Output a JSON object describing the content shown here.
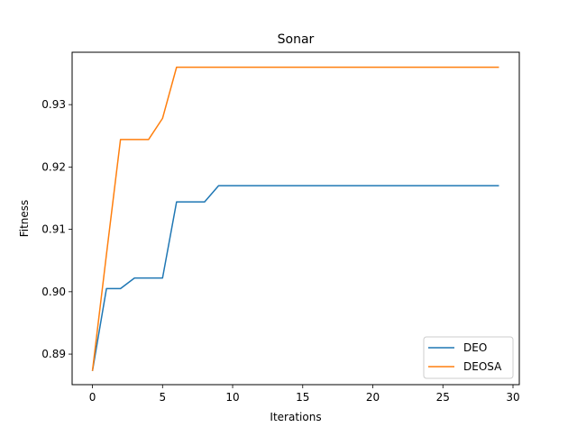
{
  "chart_data": {
    "type": "line",
    "title": "Sonar",
    "xlabel": "Iterations",
    "ylabel": "Fitness",
    "xlim": [
      -1.45,
      30.45
    ],
    "ylim": [
      0.8851,
      0.9384
    ],
    "x_ticks": [
      0,
      5,
      10,
      15,
      20,
      25,
      30
    ],
    "y_ticks": [
      0.89,
      0.9,
      0.91,
      0.92,
      0.93
    ],
    "x_tick_labels": [
      "0",
      "5",
      "10",
      "15",
      "20",
      "25",
      "30"
    ],
    "y_tick_labels": [
      "0.89",
      "0.90",
      "0.91",
      "0.92",
      "0.93"
    ],
    "grid": false,
    "legend_position": "lower-right",
    "x": [
      0,
      1,
      2,
      3,
      4,
      5,
      6,
      7,
      8,
      9,
      10,
      11,
      12,
      13,
      14,
      15,
      16,
      17,
      18,
      19,
      20,
      21,
      22,
      23,
      24,
      25,
      26,
      27,
      28,
      29
    ],
    "series": [
      {
        "name": "DEO",
        "color": "#1f77b4",
        "values": [
          0.8873,
          0.9005,
          0.9005,
          0.9022,
          0.9022,
          0.9022,
          0.9144,
          0.9144,
          0.9144,
          0.917,
          0.917,
          0.917,
          0.917,
          0.917,
          0.917,
          0.917,
          0.917,
          0.917,
          0.917,
          0.917,
          0.917,
          0.917,
          0.917,
          0.917,
          0.917,
          0.917,
          0.917,
          0.917,
          0.917,
          0.917
        ]
      },
      {
        "name": "DEOSA",
        "color": "#ff7f0e",
        "values": [
          0.8873,
          0.906,
          0.9244,
          0.9244,
          0.9244,
          0.9278,
          0.936,
          0.936,
          0.936,
          0.936,
          0.936,
          0.936,
          0.936,
          0.936,
          0.936,
          0.936,
          0.936,
          0.936,
          0.936,
          0.936,
          0.936,
          0.936,
          0.936,
          0.936,
          0.936,
          0.936,
          0.936,
          0.936,
          0.936,
          0.936
        ]
      }
    ]
  }
}
